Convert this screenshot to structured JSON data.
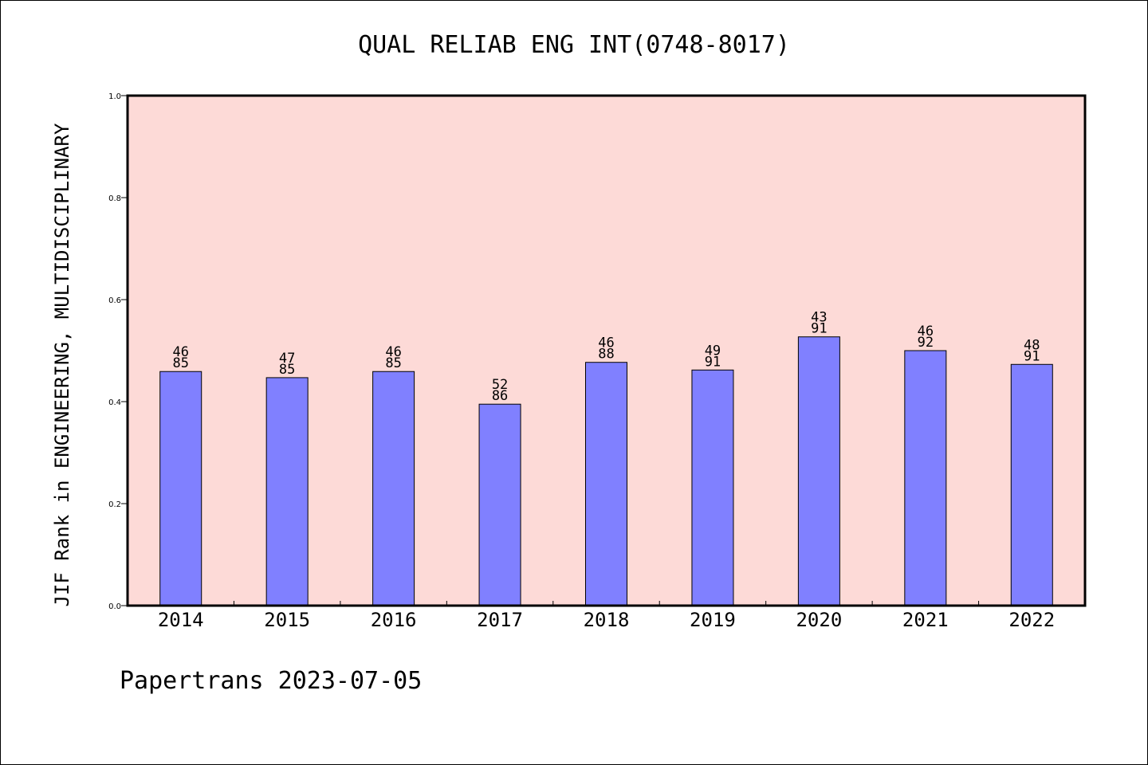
{
  "chart_data": {
    "type": "bar",
    "title": "QUAL RELIAB ENG INT(0748-8017)",
    "ylabel": "JIF Rank in ENGINEERING, MULTIDISCIPLINARY",
    "xlabel": "",
    "ylim": [
      0,
      1.0
    ],
    "yticks": [
      "0.0",
      "0.2",
      "0.4",
      "0.6",
      "0.8",
      "1.0"
    ],
    "categories": [
      "2014",
      "2015",
      "2016",
      "2017",
      "2018",
      "2019",
      "2020",
      "2021",
      "2022"
    ],
    "values": [
      0.459,
      0.447,
      0.459,
      0.395,
      0.477,
      0.462,
      0.527,
      0.5,
      0.473
    ],
    "labels": [
      [
        "46",
        "85"
      ],
      [
        "47",
        "85"
      ],
      [
        "46",
        "85"
      ],
      [
        "52",
        "86"
      ],
      [
        "46",
        "88"
      ],
      [
        "49",
        "91"
      ],
      [
        "43",
        "91"
      ],
      [
        "46",
        "92"
      ],
      [
        "48",
        "91"
      ]
    ],
    "grid": false,
    "colors": {
      "bar": "#8080ff",
      "plot_background": "#fddad7",
      "axis": "#000000"
    }
  },
  "footer": {
    "text": "Papertrans 2023-07-05"
  }
}
